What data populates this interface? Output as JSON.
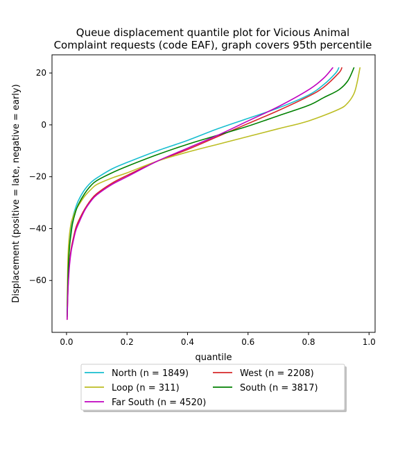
{
  "chart_data": {
    "type": "line",
    "title_lines": [
      "Queue displacement quantile plot for Vicious Animal",
      "Complaint  requests (code EAF), graph covers 95th percentile"
    ],
    "xlabel": "quantile",
    "ylabel": "Displacement (positive = late, negative = early)",
    "xlim": [
      -0.048,
      1.02
    ],
    "ylim": [
      -80,
      27
    ],
    "xticks": [
      0.0,
      0.2,
      0.4,
      0.6,
      0.8,
      1.0
    ],
    "xtick_labels": [
      "0.0",
      "0.2",
      "0.4",
      "0.6",
      "0.8",
      "1.0"
    ],
    "yticks": [
      20,
      0,
      -20,
      -40,
      -60
    ],
    "ytick_labels": [
      "20",
      "0",
      "−20",
      "−40",
      "−60"
    ],
    "grid": false,
    "legend_position": "below-center",
    "series": [
      {
        "name": "North (n = 1849)",
        "color": "#17becf",
        "x": [
          0.002,
          0.004,
          0.006,
          0.01,
          0.015,
          0.02,
          0.03,
          0.04,
          0.06,
          0.08,
          0.1,
          0.15,
          0.2,
          0.3,
          0.4,
          0.5,
          0.6,
          0.7,
          0.8,
          0.85,
          0.89,
          0.9
        ],
        "y": [
          -72,
          -62,
          -55,
          -46,
          -40,
          -36,
          -32,
          -29,
          -25,
          -22.3,
          -20.5,
          -17,
          -14.5,
          -10,
          -6,
          -1.5,
          2.5,
          6.5,
          11.5,
          15.5,
          20,
          22
        ]
      },
      {
        "name": "West (n = 2208)",
        "color": "#d62728",
        "x": [
          0.002,
          0.004,
          0.006,
          0.01,
          0.015,
          0.02,
          0.03,
          0.04,
          0.06,
          0.08,
          0.1,
          0.15,
          0.2,
          0.3,
          0.4,
          0.5,
          0.6,
          0.7,
          0.8,
          0.85,
          0.9,
          0.91
        ],
        "y": [
          -75,
          -66,
          -60,
          -53,
          -48,
          -45,
          -40,
          -37,
          -32.5,
          -29,
          -26.5,
          -22.5,
          -19.5,
          -14,
          -9.5,
          -4.5,
          0.5,
          5.5,
          11,
          14.5,
          20,
          22
        ]
      },
      {
        "name": "Loop (n = 311)",
        "color": "#bcbd22",
        "x": [
          0.002,
          0.004,
          0.006,
          0.01,
          0.015,
          0.02,
          0.03,
          0.04,
          0.06,
          0.08,
          0.1,
          0.15,
          0.2,
          0.3,
          0.4,
          0.5,
          0.6,
          0.7,
          0.8,
          0.9,
          0.93,
          0.95,
          0.96,
          0.97
        ],
        "y": [
          -70,
          -55,
          -48,
          -42,
          -38,
          -36,
          -33,
          -31,
          -27.5,
          -25,
          -23,
          -20.5,
          -18.5,
          -14,
          -10.5,
          -7.5,
          -4.5,
          -1.5,
          1.5,
          6,
          8.5,
          12,
          16,
          22
        ]
      },
      {
        "name": "South (n = 3817)",
        "color": "#008000",
        "x": [
          0.002,
          0.004,
          0.006,
          0.01,
          0.015,
          0.02,
          0.03,
          0.04,
          0.06,
          0.08,
          0.1,
          0.15,
          0.2,
          0.3,
          0.4,
          0.5,
          0.6,
          0.7,
          0.8,
          0.85,
          0.9,
          0.93,
          0.95
        ],
        "y": [
          -74,
          -63,
          -55,
          -47,
          -42,
          -38,
          -33.5,
          -30.5,
          -26.5,
          -23.5,
          -21.5,
          -18.5,
          -16,
          -11.5,
          -7.5,
          -4,
          -0.5,
          3.5,
          7.5,
          10.5,
          13.5,
          17,
          22
        ]
      },
      {
        "name": "Far South (n = 4520)",
        "color": "#bf00bf",
        "x": [
          0.002,
          0.004,
          0.006,
          0.01,
          0.015,
          0.02,
          0.03,
          0.04,
          0.06,
          0.08,
          0.1,
          0.15,
          0.2,
          0.3,
          0.4,
          0.5,
          0.6,
          0.7,
          0.8,
          0.85,
          0.88
        ],
        "y": [
          -75,
          -67,
          -61,
          -54,
          -49,
          -46,
          -41,
          -38,
          -33,
          -29.5,
          -27,
          -23,
          -20,
          -14,
          -9,
          -4,
          1.5,
          7,
          13.5,
          18,
          22
        ]
      }
    ],
    "legend_columns": 2
  }
}
